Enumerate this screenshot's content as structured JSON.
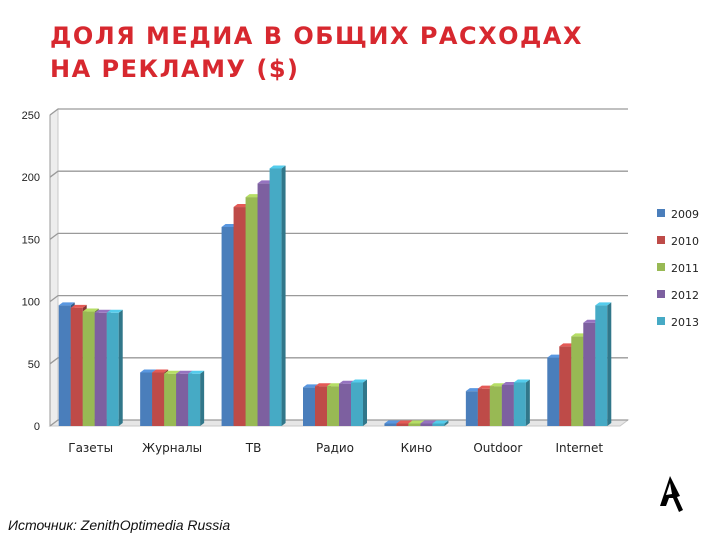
{
  "slide": {
    "title_line1": "ДОЛЯ МЕДИА В ОБЩИХ РАСХОДАХ",
    "title_line2": "НА РЕКЛАМУ ($)",
    "source": "Источник: ZenithOptimedia Russia"
  },
  "chart_data": {
    "type": "bar",
    "title": "ДОЛЯ МЕДИА В ОБЩИХ РАСХОДАХ НА РЕКЛАМУ ($)",
    "xlabel": "",
    "ylabel": "",
    "ylim": [
      0,
      250
    ],
    "yticks": [
      0,
      50,
      100,
      150,
      200,
      250
    ],
    "grid": true,
    "legend_position": "right",
    "categories": [
      "Газеты",
      "Журналы",
      "ТВ",
      "Радио",
      "Кино",
      "Outdoor",
      "Internet"
    ],
    "series": [
      {
        "name": "2009",
        "color": "#4a7ebb",
        "values": [
          97,
          43,
          160,
          31,
          2,
          28,
          55
        ]
      },
      {
        "name": "2010",
        "color": "#be4b48",
        "values": [
          95,
          43,
          176,
          32,
          2,
          30,
          64
        ]
      },
      {
        "name": "2011",
        "color": "#98b954",
        "values": [
          92,
          42,
          184,
          32,
          2,
          32,
          72
        ]
      },
      {
        "name": "2012",
        "color": "#7d60a0",
        "values": [
          91,
          42,
          195,
          34,
          2,
          33,
          83
        ]
      },
      {
        "name": "2013",
        "color": "#46aac5",
        "values": [
          91,
          42,
          207,
          35,
          2,
          35,
          97
        ]
      }
    ]
  }
}
